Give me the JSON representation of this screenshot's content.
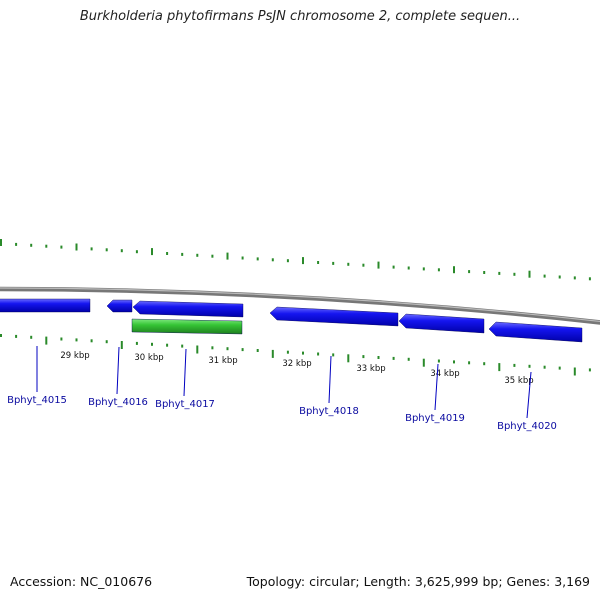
{
  "title": "Burkholderia phytofirmans PsJN chromosome 2, complete sequen...",
  "footer": {
    "accession": "Accession: NC_010676",
    "summary": "Topology: circular; Length: 3,625,999 bp; Genes: 3,169"
  },
  "colors": {
    "forward_gene": "#1010e0",
    "forward_gene_alt": "#2a9a2a",
    "gene_label": "#0a0aa0",
    "tick": "#2a8a2a",
    "backbone": "#808080"
  },
  "ruler": {
    "ticks": [
      "29 kbp",
      "30 kbp",
      "31 kbp",
      "32 kbp",
      "33 kbp",
      "34 kbp",
      "35 kbp"
    ]
  },
  "genes": [
    {
      "name": "Bphyt_4015",
      "strand": "forward",
      "color": "#1010e0"
    },
    {
      "name": "Bphyt_4016",
      "strand": "reverse",
      "color": "#1010e0"
    },
    {
      "name": "Bphyt_4017",
      "strand": "reverse",
      "color": "#1010e0"
    },
    {
      "name": "",
      "strand": "none",
      "color": "#2ab82a"
    },
    {
      "name": "Bphyt_4018",
      "strand": "reverse",
      "color": "#1010e0"
    },
    {
      "name": "Bphyt_4019",
      "strand": "reverse",
      "color": "#1010e0"
    },
    {
      "name": "Bphyt_4020",
      "strand": "reverse",
      "color": "#1010e0"
    }
  ]
}
